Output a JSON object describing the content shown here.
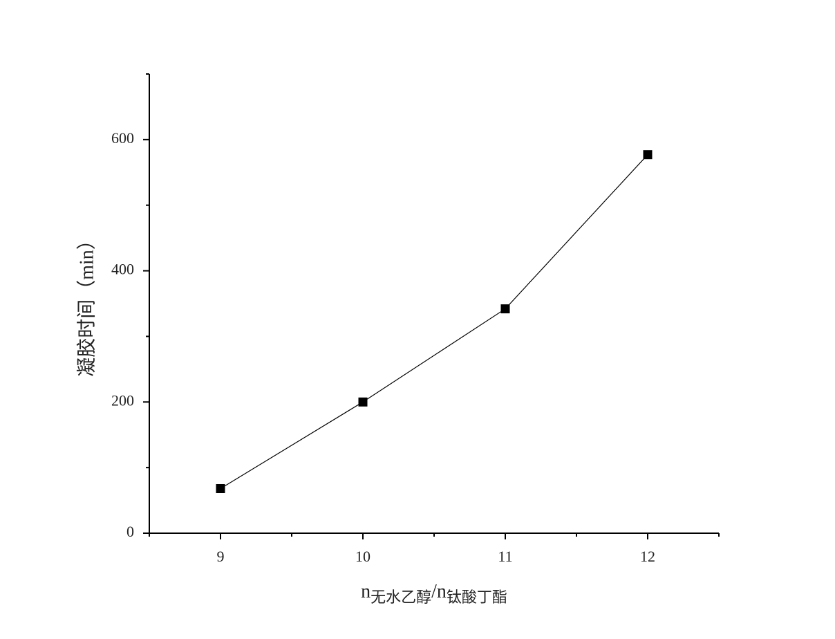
{
  "chart_data": {
    "type": "line",
    "x": [
      9,
      10,
      11,
      12
    ],
    "values": [
      68,
      200,
      342,
      577
    ],
    "color": "#000000",
    "marker": "square",
    "xlim": [
      8.5,
      12.5
    ],
    "xticks": [
      9,
      10,
      11,
      12
    ],
    "xminorticks": [
      8.5,
      9.5,
      10.5,
      11.5,
      12.5
    ],
    "ylim": [
      0,
      700
    ],
    "yticks": [
      0,
      200,
      400,
      600
    ],
    "yminorticks": [
      100,
      300,
      500,
      700
    ],
    "xlabel": [
      "n",
      "无水乙醇",
      "/n",
      "钛酸丁酯"
    ],
    "ylabel": "凝胶时间（min）",
    "grid": false
  }
}
